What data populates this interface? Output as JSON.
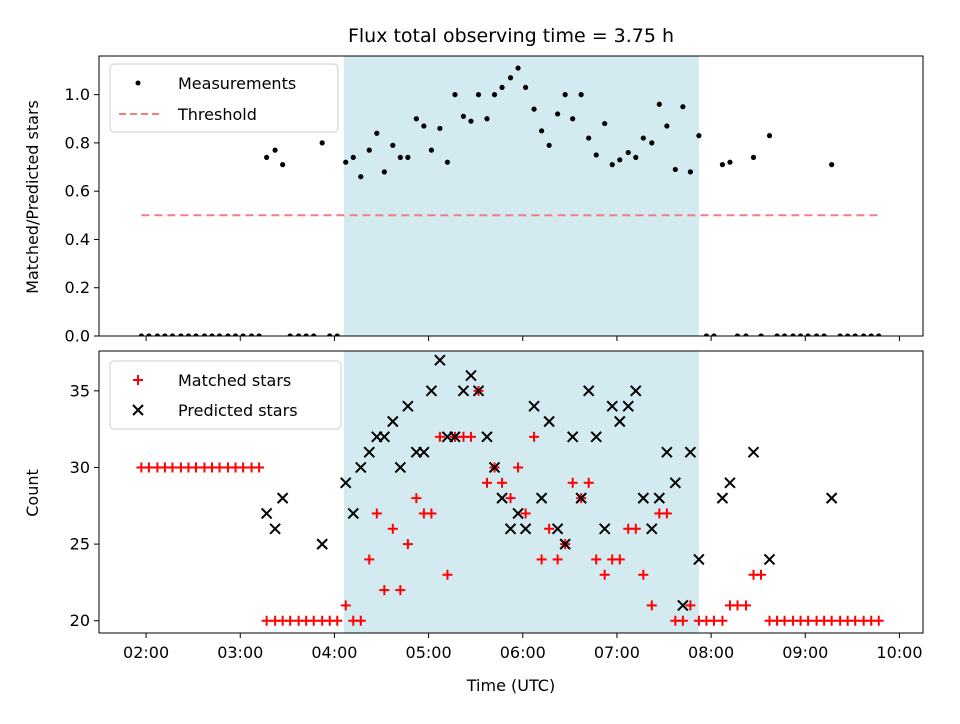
{
  "chart_data": [
    {
      "type": "scatter",
      "title": "Flux total observing time = 3.75 h",
      "xlabel": "",
      "ylabel": "Matched/Predicted stars",
      "xlim": [
        1.5,
        10.25
      ],
      "ylim": [
        0,
        1.16
      ],
      "yticks": [
        0.0,
        0.2,
        0.4,
        0.6,
        0.8,
        1.0
      ],
      "ytick_labels": [
        "0.0",
        "0.2",
        "0.4",
        "0.6",
        "0.8",
        "1.0"
      ],
      "shaded_region": {
        "start": 4.1,
        "end": 7.87,
        "color": "#d3eaf1"
      },
      "legend_position": "upper-left",
      "series": [
        {
          "name": "Measurements",
          "kind": "dots",
          "color": "#000000",
          "x": [
            1.95,
            2.03,
            2.12,
            2.2,
            2.28,
            2.37,
            2.45,
            2.53,
            2.62,
            2.7,
            2.78,
            2.87,
            2.95,
            3.03,
            3.12,
            3.2,
            3.28,
            3.37,
            3.45,
            3.53,
            3.62,
            3.7,
            3.78,
            3.87,
            3.95,
            4.03,
            4.12,
            4.2,
            4.28,
            4.37,
            4.45,
            4.53,
            4.62,
            4.7,
            4.78,
            4.87,
            4.95,
            5.03,
            5.12,
            5.2,
            5.28,
            5.37,
            5.45,
            5.53,
            5.62,
            5.7,
            5.78,
            5.87,
            5.95,
            6.03,
            6.12,
            6.2,
            6.28,
            6.37,
            6.45,
            6.53,
            6.62,
            6.7,
            6.78,
            6.87,
            6.95,
            7.03,
            7.12,
            7.2,
            7.28,
            7.37,
            7.45,
            7.53,
            7.62,
            7.7,
            7.78,
            7.87,
            7.95,
            8.03,
            8.12,
            8.2,
            8.28,
            8.37,
            8.45,
            8.53,
            8.62,
            8.7,
            8.78,
            8.87,
            8.95,
            9.03,
            9.12,
            9.2,
            9.28,
            9.37,
            9.45,
            9.53,
            9.62,
            9.7,
            9.78
          ],
          "y": [
            0,
            0,
            0,
            0,
            0,
            0,
            0,
            0,
            0,
            0,
            0,
            0,
            0,
            0,
            0,
            0,
            0.74,
            0.77,
            0.71,
            0,
            0,
            0,
            0,
            0.8,
            0,
            0,
            0.72,
            0.74,
            0.66,
            0.77,
            0.84,
            0.68,
            0.79,
            0.74,
            0.74,
            0.9,
            0.87,
            0.77,
            0.86,
            0.72,
            1.0,
            0.91,
            0.89,
            1.0,
            0.9,
            1.0,
            1.03,
            1.07,
            1.11,
            1.03,
            0.94,
            0.85,
            0.79,
            0.92,
            1.0,
            0.9,
            1.0,
            0.82,
            0.75,
            0.88,
            0.71,
            0.73,
            0.76,
            0.74,
            0.82,
            0.8,
            0.96,
            0.87,
            0.69,
            0.95,
            0.68,
            0.83,
            0,
            0,
            0.71,
            0.72,
            0,
            0,
            0.74,
            0,
            0.83,
            0,
            0,
            0,
            0,
            0,
            0,
            0,
            0.71,
            0,
            0,
            0,
            0,
            0,
            0
          ]
        },
        {
          "name": "Threshold",
          "kind": "dashed-line",
          "color": "#f08080",
          "x": [
            1.95,
            9.8
          ],
          "y": [
            0.5,
            0.5
          ]
        }
      ]
    },
    {
      "type": "scatter",
      "title": "",
      "xlabel": "Time (UTC)",
      "ylabel": "Count",
      "xlim": [
        1.5,
        10.25
      ],
      "ylim": [
        19.2,
        37.6
      ],
      "xticks": [
        2,
        3,
        4,
        5,
        6,
        7,
        8,
        9,
        10
      ],
      "xtick_labels": [
        "02:00",
        "03:00",
        "04:00",
        "05:00",
        "06:00",
        "07:00",
        "08:00",
        "09:00",
        "10:00"
      ],
      "yticks": [
        20,
        25,
        30,
        35
      ],
      "ytick_labels": [
        "20",
        "25",
        "30",
        "35"
      ],
      "shaded_region": {
        "start": 4.1,
        "end": 7.87,
        "color": "#d3eaf1"
      },
      "legend_position": "upper-left",
      "series": [
        {
          "name": "Matched stars",
          "kind": "plus",
          "color": "#ff0000",
          "x": [
            1.95,
            2.03,
            2.12,
            2.2,
            2.28,
            2.37,
            2.45,
            2.53,
            2.62,
            2.7,
            2.78,
            2.87,
            2.95,
            3.03,
            3.12,
            3.2,
            3.28,
            3.37,
            3.45,
            3.53,
            3.62,
            3.7,
            3.78,
            3.87,
            3.95,
            4.03,
            4.12,
            4.2,
            4.28,
            4.37,
            4.45,
            4.53,
            4.62,
            4.7,
            4.78,
            4.87,
            4.95,
            5.03,
            5.12,
            5.2,
            5.28,
            5.37,
            5.45,
            5.53,
            5.62,
            5.7,
            5.78,
            5.87,
            5.95,
            6.03,
            6.12,
            6.2,
            6.28,
            6.37,
            6.45,
            6.53,
            6.62,
            6.7,
            6.78,
            6.87,
            6.95,
            7.03,
            7.12,
            7.2,
            7.28,
            7.37,
            7.45,
            7.53,
            7.62,
            7.7,
            7.78,
            7.87,
            7.95,
            8.03,
            8.12,
            8.2,
            8.28,
            8.37,
            8.45,
            8.53,
            8.62,
            8.7,
            8.78,
            8.87,
            8.95,
            9.03,
            9.12,
            9.2,
            9.28,
            9.37,
            9.45,
            9.53,
            9.62,
            9.7,
            9.78
          ],
          "y": [
            30,
            30,
            30,
            30,
            30,
            30,
            30,
            30,
            30,
            30,
            30,
            30,
            30,
            30,
            30,
            30,
            20,
            20,
            20,
            20,
            20,
            20,
            20,
            20,
            20,
            20,
            21,
            20,
            20,
            24,
            27,
            22,
            26,
            22,
            25,
            28,
            27,
            27,
            32,
            23,
            32,
            32,
            32,
            35,
            29,
            30,
            29,
            28,
            30,
            27,
            32,
            24,
            26,
            24,
            25,
            29,
            28,
            29,
            24,
            23,
            24,
            24,
            26,
            26,
            23,
            21,
            27,
            27,
            20,
            20,
            21,
            20,
            20,
            20,
            20,
            21,
            21,
            21,
            23,
            23,
            20,
            20,
            20,
            20,
            20,
            20,
            20,
            20,
            20,
            20,
            20,
            20,
            20,
            20,
            20
          ]
        },
        {
          "name": "Predicted stars",
          "kind": "x",
          "color": "#000000",
          "x": [
            3.28,
            3.37,
            3.45,
            3.87,
            4.12,
            4.2,
            4.28,
            4.37,
            4.45,
            4.53,
            4.62,
            4.7,
            4.78,
            4.87,
            4.95,
            5.03,
            5.12,
            5.2,
            5.28,
            5.37,
            5.45,
            5.53,
            5.62,
            5.7,
            5.78,
            5.87,
            5.95,
            6.03,
            6.12,
            6.2,
            6.28,
            6.37,
            6.45,
            6.53,
            6.62,
            6.7,
            6.78,
            6.87,
            6.95,
            7.03,
            7.12,
            7.2,
            7.28,
            7.37,
            7.45,
            7.53,
            7.62,
            7.7,
            7.78,
            7.87,
            8.12,
            8.2,
            8.45,
            8.62,
            9.28
          ],
          "y": [
            27,
            26,
            28,
            25,
            29,
            27,
            30,
            31,
            32,
            32,
            33,
            30,
            34,
            31,
            31,
            35,
            37,
            32,
            32,
            35,
            36,
            35,
            32,
            30,
            28,
            26,
            27,
            26,
            34,
            28,
            33,
            26,
            25,
            32,
            28,
            35,
            32,
            26,
            34,
            33,
            34,
            35,
            28,
            26,
            28,
            31,
            29,
            21,
            31,
            24,
            28,
            29,
            31,
            24,
            28
          ]
        }
      ]
    }
  ]
}
